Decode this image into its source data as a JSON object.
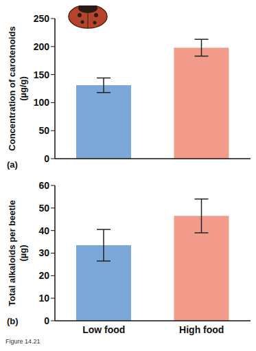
{
  "chart_data": [
    {
      "type": "bar",
      "annotations": [
        "(a)"
      ],
      "y_label": "Concentration of carotenoids (µg/g)",
      "categories": [
        null,
        null
      ],
      "values": [
        131,
        198
      ],
      "errors": [
        13,
        15
      ],
      "colors": [
        "#7ba7d9",
        "#f29b8a"
      ],
      "ylim": [
        0,
        250
      ],
      "yticks": [
        0,
        50,
        100,
        150,
        200,
        250
      ],
      "tick_labels": "y"
    },
    {
      "type": "bar",
      "annotations": [
        "(b)"
      ],
      "y_label": "Total alkaloids per beetle (µg)",
      "categories": [
        "Low food",
        "High food"
      ],
      "values": [
        33.5,
        46.5
      ],
      "errors": [
        7,
        7.5
      ],
      "colors": [
        "#7ba7d9",
        "#f29b8a"
      ],
      "ylim": [
        0,
        60
      ],
      "yticks": [
        0,
        10,
        20,
        30,
        40,
        50,
        60
      ]
    }
  ],
  "caption": "Figure 14.21"
}
